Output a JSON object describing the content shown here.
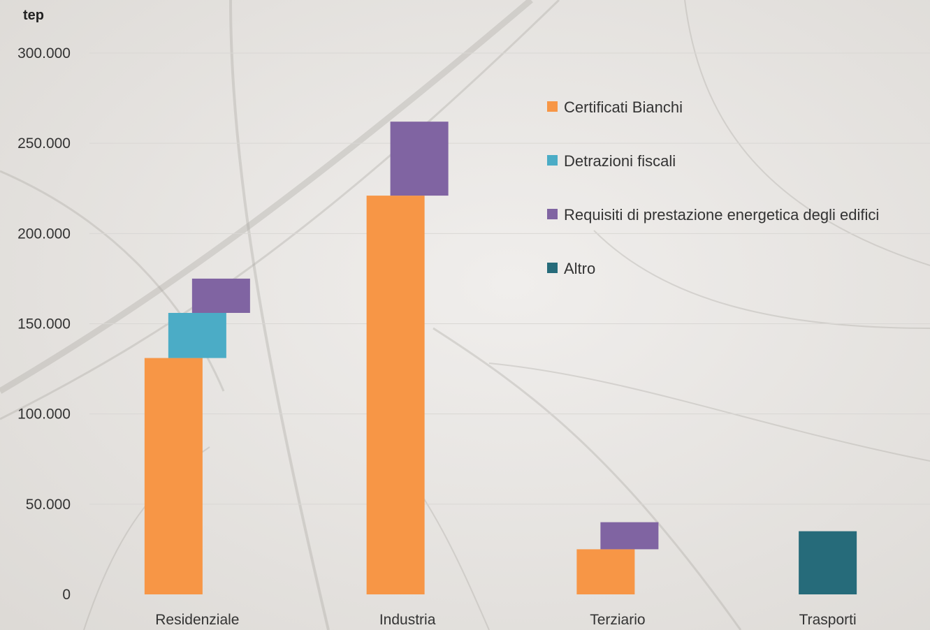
{
  "chart_data": {
    "type": "bar",
    "ylabel": "tep",
    "ylim": [
      0,
      300000
    ],
    "yticks": [
      "0",
      "50.000",
      "100.000",
      "150.000",
      "200.000",
      "250.000",
      "300.000"
    ],
    "yticks_values": [
      0,
      50000,
      100000,
      150000,
      200000,
      250000,
      300000
    ],
    "categories": [
      "Residenziale",
      "Industria",
      "Terziario",
      "Trasporti"
    ],
    "series": [
      {
        "name": "Certificati Bianchi",
        "color": "#f79646",
        "values": [
          131000,
          221000,
          25000,
          0
        ]
      },
      {
        "name": "Detrazioni fiscali",
        "color": "#4bacc6",
        "values": [
          25000,
          0,
          0,
          0
        ]
      },
      {
        "name": "Requisiti di prestazione energetica degli edifici",
        "color": "#8064a2",
        "values": [
          19000,
          41000,
          15000,
          0
        ]
      },
      {
        "name": "Altro",
        "color": "#266b7a",
        "values": [
          0,
          0,
          0,
          35000
        ]
      }
    ],
    "grid": true,
    "legend_position": "top-right"
  }
}
